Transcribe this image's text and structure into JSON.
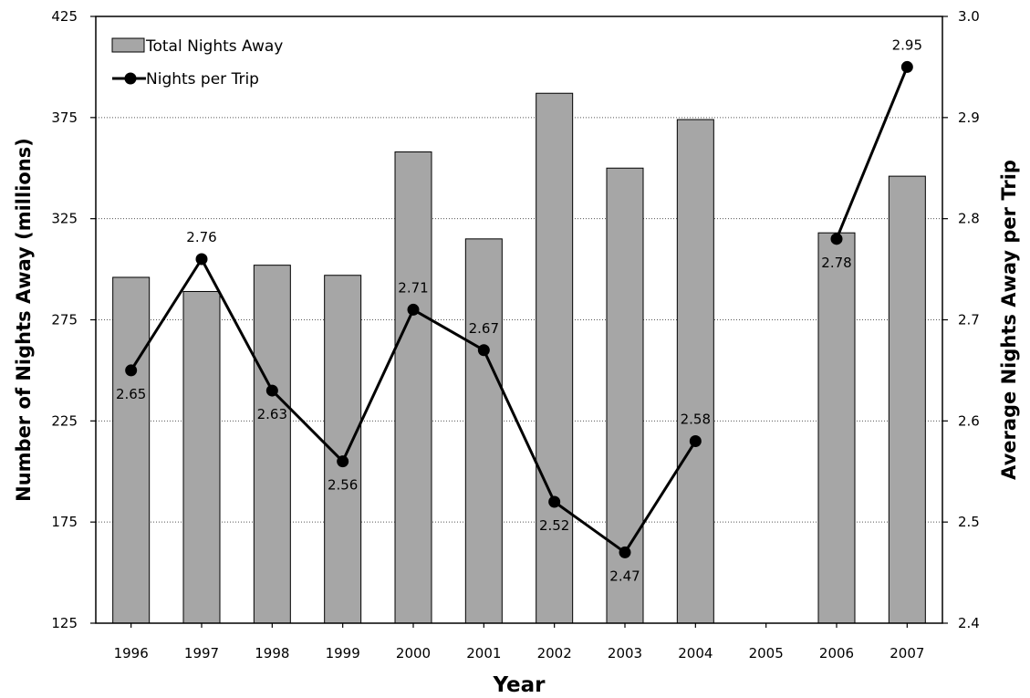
{
  "chart_data": {
    "type": "bar+line",
    "categories": [
      "1996",
      "1997",
      "1998",
      "1999",
      "2000",
      "2001",
      "2002",
      "2003",
      "2004",
      "2005",
      "2006",
      "2007"
    ],
    "xlabel": "Year",
    "ylabel_left": "Number of Nights Away (millions)",
    "ylabel_right": "Average Nights Away per Trip",
    "ylim_left": [
      125,
      425
    ],
    "yticks_left": [
      125,
      175,
      225,
      275,
      325,
      375,
      425
    ],
    "ylim_right": [
      2.4,
      3.0
    ],
    "yticks_right": [
      "2.4",
      "2.5",
      "2.6",
      "2.7",
      "2.8",
      "2.9",
      "3.0"
    ],
    "grid": "horizontal dotted",
    "legend_position": "top-left",
    "series": [
      {
        "name": "Total Nights Away",
        "kind": "bar",
        "axis": "left",
        "color": "#a6a6a6",
        "values": [
          296,
          289,
          302,
          297,
          358,
          315,
          387,
          350,
          374,
          null,
          318,
          346
        ]
      },
      {
        "name": "Nights per Trip",
        "kind": "line",
        "axis": "right",
        "color": "#000000",
        "values": [
          2.65,
          2.76,
          2.63,
          2.56,
          2.71,
          2.67,
          2.52,
          2.47,
          2.58,
          null,
          2.78,
          2.95
        ],
        "labels": [
          "2.65",
          "2.76",
          "2.63",
          "2.56",
          "2.71",
          "2.67",
          "2.52",
          "2.47",
          "2.58",
          "",
          "2.78",
          "2.95"
        ],
        "label_positions": [
          "below",
          "above",
          "below",
          "below",
          "above",
          "above",
          "below",
          "below",
          "above",
          "",
          "below",
          "above"
        ]
      }
    ]
  }
}
